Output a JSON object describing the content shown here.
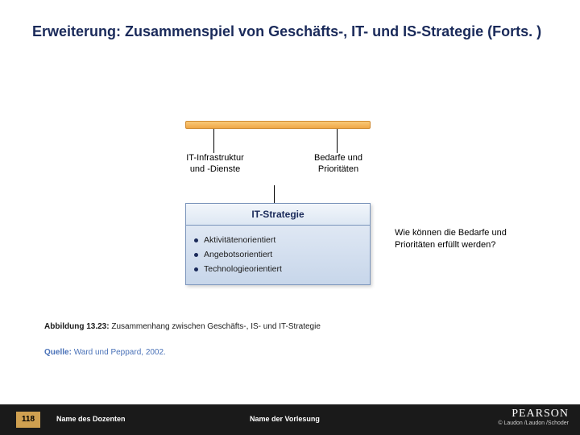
{
  "title": "Erweiterung: Zusammenspiel von Geschäfts-, IT- und IS-Strategie (Forts. )",
  "diagram": {
    "orange_bar_color_top": "#f9c978",
    "orange_bar_color_bottom": "#f0a848",
    "label_left_line1": "IT-Infrastruktur",
    "label_left_line2": "und -Dienste",
    "label_right_line1": "Bedarfe und",
    "label_right_line2": "Prioritäten",
    "box_header": "IT-Strategie",
    "box_bg_top": "#e8eef7",
    "box_bg_bottom": "#c7d6ea",
    "box_border": "#7a94bb",
    "bullets": [
      "Aktivitätenorientiert",
      "Angebotsorientiert",
      "Technologieorientiert"
    ],
    "side_question": "Wie können die Bedarfe und Prioritäten erfüllt werden?"
  },
  "caption_label": "Abbildung 13.23:",
  "caption_text": "Zusammenhang zwischen Geschäfts-, IS- und IT-Strategie",
  "source_label": "Quelle:",
  "source_text": "Ward und Peppard, 2002.",
  "footer": {
    "page_number": "118",
    "dozent": "Name des Dozenten",
    "vorlesung": "Name der Vorlesung",
    "brand": "PEARSON",
    "copyright": "© Laudon /Laudon /Schoder"
  },
  "colors": {
    "title_color": "#1a2a5a",
    "footer_bg": "#1a1a1a",
    "page_badge_bg": "#cfa050",
    "source_color": "#4a72b8"
  }
}
